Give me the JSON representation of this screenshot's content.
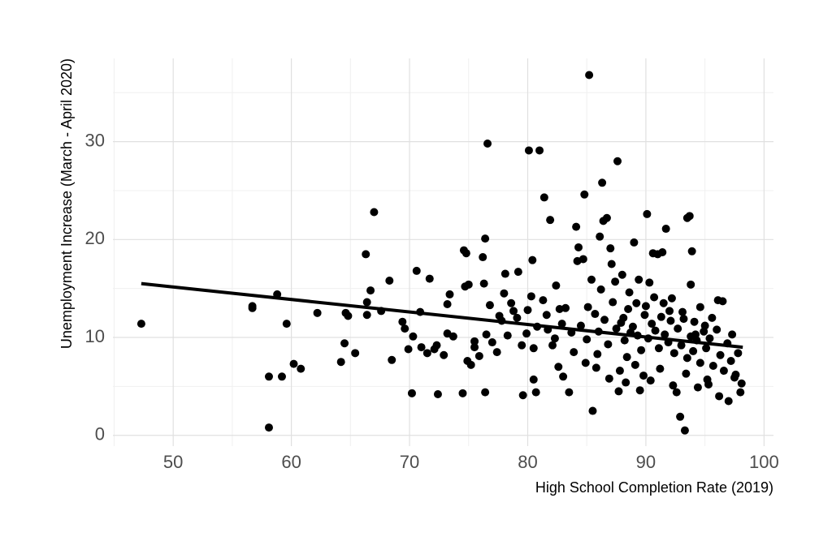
{
  "chart_data": {
    "type": "scatter",
    "x_label": "High School Completion Rate (2019)",
    "y_label": "Unemployment Increase (March - April 2020)",
    "color": "#000000",
    "xlim": [
      44.9,
      100.8
    ],
    "xticks": [
      50,
      60,
      70,
      80,
      90,
      100
    ],
    "xminor": [
      45,
      55,
      65,
      75,
      85,
      95
    ],
    "ylim": [
      -1.1,
      38.5
    ],
    "yticks": [
      0,
      10,
      20,
      30
    ],
    "yminor": [
      5,
      15,
      25,
      35
    ],
    "grid": true,
    "x": [
      47.3,
      56.7,
      56.7,
      58.1,
      58.1,
      58.8,
      59.2,
      59.6,
      60.2,
      60.8,
      62.2,
      64.2,
      64.5,
      64.6,
      64.8,
      65.4,
      66.3,
      66.4,
      66.4,
      66.7,
      67.0,
      67.6,
      68.3,
      68.5,
      69.4,
      69.6,
      69.9,
      70.2,
      70.3,
      70.6,
      70.9,
      71.0,
      71.5,
      71.7,
      72.1,
      72.3,
      72.4,
      72.9,
      73.2,
      73.2,
      73.4,
      73.7,
      74.5,
      74.6,
      74.8,
      74.7,
      74.9,
      75.0,
      75.2,
      75.5,
      75.5,
      75.9,
      76.2,
      76.3,
      76.4,
      76.4,
      76.5,
      76.6,
      76.8,
      77.0,
      77.4,
      77.8,
      78.0,
      78.1,
      78.3,
      78.8,
      79.2,
      79.5,
      79.6,
      80.0,
      80.1,
      80.4,
      80.5,
      80.5,
      80.7,
      81.0,
      81.4,
      81.6,
      81.9,
      82.1,
      82.4,
      82.6,
      83.0,
      83.2,
      83.5,
      84.1,
      84.2,
      84.3,
      84.7,
      84.8,
      85.2,
      85.1,
      85.4,
      85.5,
      85.9,
      86.1,
      86.3,
      86.4,
      86.7,
      87.0,
      87.1,
      87.6,
      87.7,
      88.1,
      88.4,
      88.7,
      89.0,
      89.2,
      89.5,
      90.1,
      90.3,
      90.6,
      91.0,
      91.4,
      91.7,
      92.2,
      92.6,
      92.9,
      93.3,
      93.5,
      93.7,
      93.9,
      93.8,
      94.2,
      94.6,
      95.2,
      95.6,
      96.1,
      96.5,
      97.0,
      97.3,
      97.6,
      98.0,
      98.1,
      97.8,
      84.5,
      85.0,
      85.7,
      86.0,
      86.5,
      86.8,
      87.2,
      87.5,
      87.9,
      88.2,
      88.5,
      88.9,
      89.3,
      89.6,
      89.9,
      90.2,
      90.5,
      90.8,
      91.1,
      91.3,
      91.6,
      91.9,
      92.1,
      92.4,
      92.7,
      93.0,
      93.2,
      93.5,
      93.8,
      94.0,
      94.3,
      94.6,
      94.9,
      95.1,
      95.4,
      95.7,
      96.0,
      96.3,
      96.6,
      96.9,
      97.2,
      97.5,
      86.2,
      87.4,
      88.0,
      88.6,
      89.4,
      90.0,
      90.7,
      91.5,
      92.0,
      93.1,
      94.1,
      95.0,
      85.8,
      86.9,
      87.8,
      88.3,
      89.1,
      89.8,
      90.4,
      91.2,
      92.3,
      93.4,
      94.4,
      95.3,
      96.2,
      83.7,
      82.9,
      82.3,
      81.7,
      80.8,
      79.9,
      79.1,
      83.9,
      84.9,
      82.7,
      81.3,
      80.3,
      78.6,
      77.6
    ],
    "values": [
      11.4,
      13.2,
      13.0,
      6.0,
      0.8,
      14.4,
      6.0,
      11.4,
      7.3,
      6.8,
      12.5,
      7.5,
      9.4,
      12.5,
      12.2,
      8.4,
      18.5,
      13.6,
      12.3,
      14.8,
      22.8,
      12.7,
      15.8,
      7.7,
      11.6,
      10.9,
      8.8,
      4.3,
      10.1,
      16.8,
      12.6,
      9.0,
      8.4,
      16.0,
      8.8,
      9.2,
      4.2,
      8.2,
      10.4,
      13.4,
      14.4,
      10.1,
      4.3,
      18.9,
      18.6,
      15.2,
      7.6,
      15.4,
      7.2,
      9.0,
      9.6,
      8.1,
      18.2,
      15.5,
      20.1,
      4.4,
      10.3,
      29.8,
      13.3,
      9.5,
      8.5,
      11.7,
      14.5,
      16.5,
      10.2,
      12.7,
      16.7,
      9.2,
      4.1,
      12.8,
      29.1,
      17.9,
      8.9,
      5.7,
      4.4,
      29.1,
      24.3,
      12.3,
      22.0,
      9.2,
      15.3,
      7.0,
      6.0,
      13.0,
      4.4,
      21.3,
      17.8,
      19.2,
      18.0,
      24.6,
      36.8,
      13.1,
      15.9,
      2.5,
      8.3,
      20.3,
      25.8,
      21.9,
      22.2,
      19.1,
      17.5,
      28.0,
      4.5,
      12.0,
      8.0,
      10.5,
      19.7,
      13.5,
      4.6,
      22.6,
      15.6,
      18.6,
      18.5,
      18.7,
      21.1,
      14.0,
      4.4,
      1.9,
      0.5,
      22.2,
      22.4,
      18.8,
      15.4,
      10.3,
      13.1,
      5.7,
      12.0,
      13.8,
      13.7,
      3.5,
      10.3,
      6.2,
      4.4,
      5.3,
      8.4,
      11.2,
      9.8,
      12.4,
      10.6,
      11.8,
      9.3,
      13.6,
      10.9,
      11.5,
      9.7,
      12.9,
      11.1,
      10.2,
      8.7,
      12.3,
      9.9,
      11.4,
      10.7,
      8.9,
      12.1,
      10.3,
      9.5,
      11.7,
      8.4,
      10.9,
      9.2,
      11.9,
      7.9,
      10.1,
      8.6,
      9.7,
      7.4,
      10.6,
      8.9,
      9.9,
      7.1,
      10.8,
      8.2,
      6.6,
      9.4,
      7.6,
      5.9,
      14.9,
      15.7,
      16.4,
      14.6,
      15.9,
      13.2,
      14.1,
      13.5,
      12.7,
      12.6,
      11.6,
      11.2,
      6.9,
      5.8,
      6.6,
      5.4,
      7.2,
      6.1,
      5.6,
      6.8,
      5.1,
      6.3,
      4.9,
      5.2,
      4.0,
      10.5,
      11.4,
      9.9,
      10.8,
      11.1,
      10.4,
      12.0,
      8.5,
      7.4,
      12.9,
      13.8,
      14.2,
      13.5,
      12.2
    ],
    "trend": {
      "x": [
        47.3,
        98.2
      ],
      "values": [
        15.5,
        9.0
      ],
      "color": "#000000"
    }
  }
}
